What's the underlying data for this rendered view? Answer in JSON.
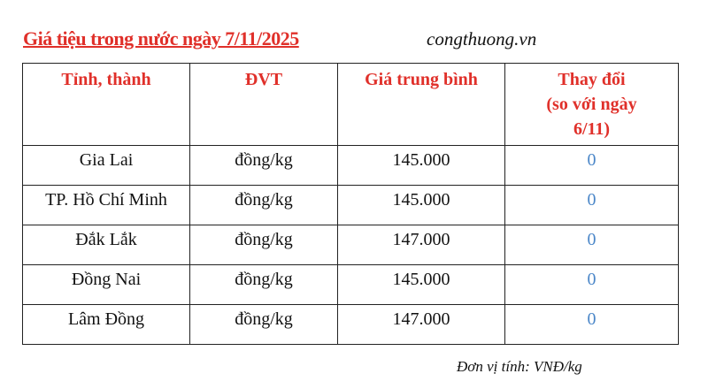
{
  "title": "Giá tiệu trong nước ngày 7/11/2025",
  "source": "congthuong.vn",
  "table": {
    "headers": [
      "Tỉnh, thành",
      "ĐVT",
      "Giá trung bình",
      "Thay đổi",
      "(so với ngày",
      "6/11)"
    ],
    "rows": [
      [
        "Gia Lai",
        "đồng/kg",
        "145.000",
        "0"
      ],
      [
        "TP. Hồ Chí Minh",
        "đồng/kg",
        "145.000",
        "0"
      ],
      [
        "Đắk Lắk",
        "đồng/kg",
        "147.000",
        "0"
      ],
      [
        "Đồng Nai",
        "đồng/kg",
        "145.000",
        "0"
      ],
      [
        "Lâm Đồng",
        "đồng/kg",
        "147.000",
        "0"
      ]
    ]
  },
  "unit_note": "Đơn vị tính: VNĐ/kg",
  "colors": {
    "header": "#e0302a",
    "change": "#4a86c8"
  }
}
